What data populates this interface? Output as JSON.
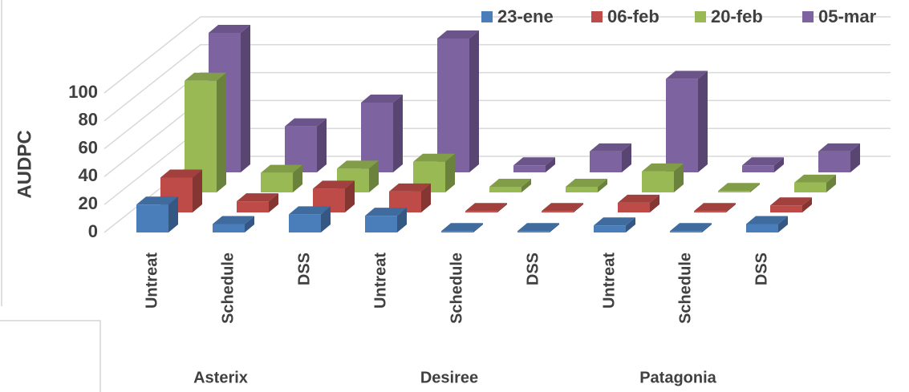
{
  "chart_data": {
    "type": "bar3d",
    "y_label": "AUDPC",
    "categories": [
      "Untreat",
      "Schedule",
      "DSS",
      "Untreat",
      "Schedule",
      "DSS",
      "Untreat",
      "Schedule",
      "DSS"
    ],
    "groups": [
      "Asterix",
      "Desiree",
      "Patagonia"
    ],
    "series": [
      {
        "name": "23-ene",
        "color": "#4a7ebb",
        "values": [
          20,
          6,
          13,
          12,
          1,
          1,
          5,
          1,
          6
        ]
      },
      {
        "name": "06-feb",
        "color": "#be4b48",
        "values": [
          25,
          8,
          17,
          15,
          1,
          1,
          7,
          1,
          5
        ]
      },
      {
        "name": "20-feb",
        "color": "#98b954",
        "values": [
          80,
          14,
          17,
          22,
          4,
          4,
          15,
          1,
          7
        ]
      },
      {
        "name": "05-mar",
        "color": "#7e63a1",
        "values": [
          100,
          33,
          50,
          96,
          5,
          15,
          67,
          5,
          15
        ]
      }
    ],
    "ylim": [
      0,
      100
    ],
    "yticks": [
      0,
      20,
      40,
      60,
      80,
      100
    ],
    "grid": true,
    "legend": "top-right"
  }
}
